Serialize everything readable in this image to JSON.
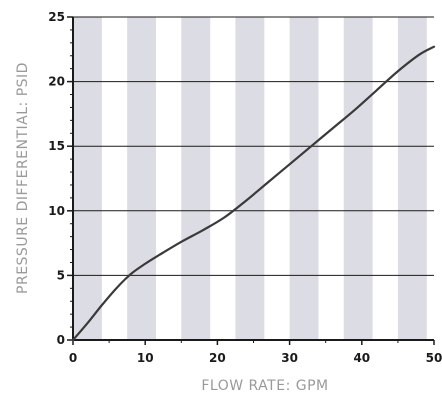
{
  "chart_data": {
    "type": "line",
    "xlabel": "FLOW RATE:  GPM",
    "ylabel": "PRESSURE DIFFERENTIAL:  PSID",
    "xlim": [
      0,
      50
    ],
    "ylim": [
      0,
      25
    ],
    "x_ticks": [
      "0",
      "10",
      "20",
      "30",
      "40",
      "50"
    ],
    "y_ticks": [
      "0",
      "5",
      "10",
      "15",
      "20",
      "25"
    ],
    "grid": {
      "horizontal": true,
      "vertical_bands": true
    },
    "colors": {
      "line": "#3a3a3a",
      "band": "#dcdce4",
      "gridline": "#1a1a1a",
      "axis": "#1a1a1a"
    },
    "series": [
      {
        "x": [
          0,
          2,
          4,
          6,
          8,
          10,
          12,
          15,
          18,
          21,
          24,
          27,
          30,
          33,
          36,
          39,
          42,
          45,
          48,
          50
        ],
        "values": [
          0,
          1.3,
          2.7,
          4.0,
          5.1,
          5.9,
          6.6,
          7.6,
          8.5,
          9.5,
          10.8,
          12.2,
          13.6,
          15.0,
          16.4,
          17.8,
          19.3,
          20.8,
          22.1,
          22.7
        ]
      }
    ]
  }
}
